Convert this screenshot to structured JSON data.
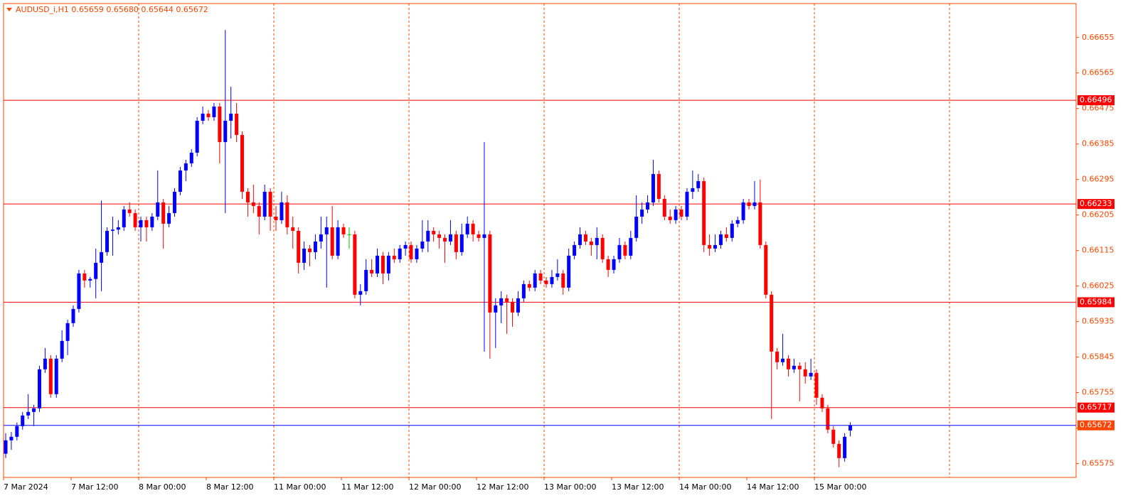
{
  "chart_data": {
    "type": "candlestick",
    "title": "AUDUSD_i,H1  0.65659 0.65680 0.65644 0.65672",
    "categories": [
      "7 Mar 2024",
      null,
      null,
      null,
      null,
      null,
      null,
      null,
      null,
      null,
      null,
      null,
      "7 Mar 12:00",
      null,
      null,
      null,
      null,
      null,
      null,
      null,
      null,
      null,
      null,
      null,
      "8 Mar 00:00",
      null,
      null,
      null,
      null,
      null,
      null,
      null,
      null,
      null,
      null,
      null,
      "8 Mar 12:00",
      null,
      null,
      null,
      null,
      null,
      null,
      null,
      null,
      null,
      null,
      null,
      "11 Mar 00:00",
      null,
      null,
      null,
      null,
      null,
      null,
      null,
      null,
      null,
      null,
      null,
      "11 Mar 12:00",
      null,
      null,
      null,
      null,
      null,
      null,
      null,
      null,
      null,
      null,
      null,
      "12 Mar 00:00",
      null,
      null,
      null,
      null,
      null,
      null,
      null,
      null,
      null,
      null,
      null,
      "12 Mar 12:00",
      null,
      null,
      null,
      null,
      null,
      null,
      null,
      null,
      null,
      null,
      null,
      "13 Mar 00:00",
      null,
      null,
      null,
      null,
      null,
      null,
      null,
      null,
      null,
      null,
      null,
      "13 Mar 12:00",
      null,
      null,
      null,
      null,
      null,
      null,
      null,
      null,
      null,
      null,
      null,
      "14 Mar 00:00",
      null,
      null,
      null,
      null,
      null,
      null,
      null,
      null,
      null,
      null,
      null,
      "14 Mar 12:00",
      null,
      null,
      null,
      null,
      null,
      null,
      null,
      null,
      null,
      null,
      null,
      "15 Mar 00:00",
      null,
      null,
      null,
      null,
      null,
      null
    ],
    "ohlc": [
      [
        0.656,
        0.65652,
        0.65589,
        0.65634
      ],
      [
        0.65634,
        0.65655,
        0.6561,
        0.65643
      ],
      [
        0.65643,
        0.65679,
        0.65634,
        0.6567
      ],
      [
        0.6567,
        0.65706,
        0.65661,
        0.65697
      ],
      [
        0.65697,
        0.65751,
        0.65688,
        0.65706
      ],
      [
        0.65706,
        0.65724,
        0.6567,
        0.65715
      ],
      [
        0.65715,
        0.65823,
        0.65706,
        0.65814
      ],
      [
        0.65814,
        0.65868,
        0.65805,
        0.65841
      ],
      [
        0.65841,
        0.6585,
        0.65742,
        0.65751
      ],
      [
        0.65751,
        0.6585,
        0.65742,
        0.65841
      ],
      [
        0.65841,
        0.65913,
        0.65832,
        0.65886
      ],
      [
        0.65886,
        0.6594,
        0.6585,
        0.65931
      ],
      [
        0.65931,
        0.65976,
        0.65922,
        0.65967
      ],
      [
        0.65967,
        0.66066,
        0.65958,
        0.66057
      ],
      [
        0.66057,
        0.66066,
        0.66021,
        0.66039
      ],
      [
        0.66039,
        0.66048,
        0.66021,
        0.66043
      ],
      [
        0.66043,
        0.6612,
        0.65994,
        0.66084
      ],
      [
        0.66084,
        0.66242,
        0.66012,
        0.66111
      ],
      [
        0.66111,
        0.66174,
        0.66102,
        0.66165
      ],
      [
        0.66165,
        0.66201,
        0.66102,
        0.66168
      ],
      [
        0.66168,
        0.66192,
        0.66156,
        0.66174
      ],
      [
        0.66174,
        0.66228,
        0.66165,
        0.66219
      ],
      [
        0.66219,
        0.66237,
        0.66201,
        0.6621
      ],
      [
        0.6621,
        0.66219,
        0.66165,
        0.66174
      ],
      [
        0.66174,
        0.66201,
        0.66138,
        0.66192
      ],
      [
        0.66192,
        0.66201,
        0.66138,
        0.66174
      ],
      [
        0.66174,
        0.6621,
        0.66165,
        0.66201
      ],
      [
        0.66201,
        0.66318,
        0.66192,
        0.66237
      ],
      [
        0.66237,
        0.66246,
        0.6612,
        0.66183
      ],
      [
        0.66183,
        0.66228,
        0.66174,
        0.6621
      ],
      [
        0.6621,
        0.66273,
        0.66201,
        0.66264
      ],
      [
        0.66264,
        0.66327,
        0.66255,
        0.66318
      ],
      [
        0.66318,
        0.66345,
        0.66291,
        0.66336
      ],
      [
        0.66336,
        0.66372,
        0.66327,
        0.66363
      ],
      [
        0.66363,
        0.66453,
        0.66354,
        0.66444
      ],
      [
        0.66444,
        0.6648,
        0.66435,
        0.66462
      ],
      [
        0.66462,
        0.66471,
        0.66444,
        0.66453
      ],
      [
        0.66453,
        0.66489,
        0.66444,
        0.6648
      ],
      [
        0.6648,
        0.66489,
        0.66336,
        0.6639
      ],
      [
        0.6639,
        0.66674,
        0.6621,
        0.66444
      ],
      [
        0.66444,
        0.6653,
        0.66399,
        0.66462
      ],
      [
        0.66462,
        0.66489,
        0.6639,
        0.66408
      ],
      [
        0.66408,
        0.66417,
        0.66246,
        0.66264
      ],
      [
        0.66264,
        0.66273,
        0.66201,
        0.66237
      ],
      [
        0.66237,
        0.66282,
        0.6621,
        0.66228
      ],
      [
        0.66228,
        0.66237,
        0.66156,
        0.66201
      ],
      [
        0.66201,
        0.66282,
        0.66192,
        0.66264
      ],
      [
        0.66264,
        0.66273,
        0.66165,
        0.66201
      ],
      [
        0.66201,
        0.66228,
        0.66165,
        0.66192
      ],
      [
        0.66192,
        0.66264,
        0.66183,
        0.66237
      ],
      [
        0.66237,
        0.66255,
        0.66156,
        0.66174
      ],
      [
        0.66174,
        0.66201,
        0.6612,
        0.66165
      ],
      [
        0.66165,
        0.66174,
        0.66057,
        0.66084
      ],
      [
        0.66084,
        0.66138,
        0.66066,
        0.6612
      ],
      [
        0.6612,
        0.66129,
        0.66075,
        0.66111
      ],
      [
        0.66111,
        0.66156,
        0.66093,
        0.66138
      ],
      [
        0.66138,
        0.66201,
        0.6612,
        0.66156
      ],
      [
        0.66156,
        0.66201,
        0.66021,
        0.66174
      ],
      [
        0.66174,
        0.66228,
        0.66093,
        0.66102
      ],
      [
        0.66102,
        0.66192,
        0.66093,
        0.66174
      ],
      [
        0.66174,
        0.66183,
        0.66147,
        0.66156
      ],
      [
        0.66156,
        0.66174,
        0.6612,
        0.66156
      ],
      [
        0.66156,
        0.66165,
        0.65994,
        0.66003
      ],
      [
        0.66003,
        0.6603,
        0.65976,
        0.66012
      ],
      [
        0.66012,
        0.66093,
        0.66003,
        0.66066
      ],
      [
        0.66066,
        0.66093,
        0.66048,
        0.66057
      ],
      [
        0.66057,
        0.6612,
        0.66048,
        0.66102
      ],
      [
        0.66102,
        0.66111,
        0.6603,
        0.66057
      ],
      [
        0.66057,
        0.66111,
        0.66039,
        0.66102
      ],
      [
        0.66102,
        0.6612,
        0.66084,
        0.66093
      ],
      [
        0.66093,
        0.66129,
        0.66084,
        0.6612
      ],
      [
        0.6612,
        0.66138,
        0.66102,
        0.66129
      ],
      [
        0.66129,
        0.66138,
        0.66084,
        0.66093
      ],
      [
        0.66093,
        0.66129,
        0.66084,
        0.6612
      ],
      [
        0.6612,
        0.66192,
        0.66111,
        0.66138
      ],
      [
        0.66138,
        0.66192,
        0.66111,
        0.66165
      ],
      [
        0.66165,
        0.66174,
        0.66138,
        0.66156
      ],
      [
        0.66156,
        0.66165,
        0.6612,
        0.66147
      ],
      [
        0.66147,
        0.66156,
        0.66084,
        0.66138
      ],
      [
        0.66138,
        0.66192,
        0.66129,
        0.66156
      ],
      [
        0.66156,
        0.66165,
        0.66093,
        0.66111
      ],
      [
        0.66111,
        0.66183,
        0.66102,
        0.66156
      ],
      [
        0.66156,
        0.66201,
        0.66147,
        0.66183
      ],
      [
        0.66183,
        0.66192,
        0.66138,
        0.66156
      ],
      [
        0.66156,
        0.66165,
        0.66138,
        0.66147
      ],
      [
        0.66147,
        0.6639,
        0.65859,
        0.66156
      ],
      [
        0.66156,
        0.66165,
        0.65841,
        0.65958
      ],
      [
        0.65958,
        0.65994,
        0.65868,
        0.65976
      ],
      [
        0.65976,
        0.66012,
        0.65931,
        0.65994
      ],
      [
        0.65994,
        0.66003,
        0.65904,
        0.65985
      ],
      [
        0.65985,
        0.65994,
        0.65922,
        0.65958
      ],
      [
        0.65958,
        0.66012,
        0.65949,
        0.65994
      ],
      [
        0.65994,
        0.66039,
        0.65985,
        0.6603
      ],
      [
        0.6603,
        0.66039,
        0.66012,
        0.66021
      ],
      [
        0.66021,
        0.66066,
        0.66012,
        0.66057
      ],
      [
        0.66057,
        0.66066,
        0.6603,
        0.66039
      ],
      [
        0.66039,
        0.66048,
        0.66021,
        0.6603
      ],
      [
        0.6603,
        0.66066,
        0.66021,
        0.66048
      ],
      [
        0.66048,
        0.66093,
        0.66039,
        0.66057
      ],
      [
        0.66057,
        0.66066,
        0.66003,
        0.66021
      ],
      [
        0.66021,
        0.6612,
        0.66012,
        0.66102
      ],
      [
        0.66102,
        0.66138,
        0.66093,
        0.66129
      ],
      [
        0.66129,
        0.66174,
        0.6612,
        0.66156
      ],
      [
        0.66156,
        0.66165,
        0.66129,
        0.66138
      ],
      [
        0.66138,
        0.66147,
        0.66102,
        0.66129
      ],
      [
        0.66129,
        0.66174,
        0.66093,
        0.66147
      ],
      [
        0.66147,
        0.66156,
        0.66084,
        0.66093
      ],
      [
        0.66093,
        0.66102,
        0.66048,
        0.66066
      ],
      [
        0.66066,
        0.66102,
        0.66057,
        0.66093
      ],
      [
        0.66093,
        0.66147,
        0.66084,
        0.66129
      ],
      [
        0.66129,
        0.66138,
        0.66093,
        0.66102
      ],
      [
        0.66102,
        0.66165,
        0.66093,
        0.66147
      ],
      [
        0.66147,
        0.66255,
        0.66138,
        0.66201
      ],
      [
        0.66201,
        0.66237,
        0.66183,
        0.66219
      ],
      [
        0.66219,
        0.66255,
        0.6621,
        0.66237
      ],
      [
        0.66237,
        0.66345,
        0.66228,
        0.66309
      ],
      [
        0.66309,
        0.66318,
        0.66237,
        0.66246
      ],
      [
        0.66246,
        0.66255,
        0.66192,
        0.66201
      ],
      [
        0.66201,
        0.66219,
        0.66183,
        0.66192
      ],
      [
        0.66192,
        0.66228,
        0.66183,
        0.66219
      ],
      [
        0.66219,
        0.66228,
        0.66192,
        0.66201
      ],
      [
        0.66201,
        0.66273,
        0.66192,
        0.66264
      ],
      [
        0.66264,
        0.66318,
        0.66246,
        0.66273
      ],
      [
        0.66273,
        0.66309,
        0.66264,
        0.66291
      ],
      [
        0.66291,
        0.663,
        0.66111,
        0.66129
      ],
      [
        0.66129,
        0.66156,
        0.66102,
        0.6612
      ],
      [
        0.6612,
        0.66156,
        0.66111,
        0.66129
      ],
      [
        0.66129,
        0.66165,
        0.6612,
        0.66156
      ],
      [
        0.66156,
        0.66174,
        0.66138,
        0.66147
      ],
      [
        0.66147,
        0.66192,
        0.66138,
        0.66183
      ],
      [
        0.66183,
        0.66201,
        0.66174,
        0.66192
      ],
      [
        0.66192,
        0.66246,
        0.66183,
        0.66237
      ],
      [
        0.66237,
        0.66246,
        0.66219,
        0.66228
      ],
      [
        0.66228,
        0.66291,
        0.66219,
        0.66237
      ],
      [
        0.66237,
        0.66295,
        0.6612,
        0.66129
      ],
      [
        0.66129,
        0.66138,
        0.65994,
        0.66003
      ],
      [
        0.66003,
        0.66012,
        0.65688,
        0.65859
      ],
      [
        0.65859,
        0.65868,
        0.65814,
        0.65832
      ],
      [
        0.65832,
        0.65904,
        0.65823,
        0.65841
      ],
      [
        0.65841,
        0.6585,
        0.65796,
        0.65814
      ],
      [
        0.65814,
        0.65841,
        0.65805,
        0.65823
      ],
      [
        0.65823,
        0.65832,
        0.65733,
        0.65814
      ],
      [
        0.65814,
        0.65832,
        0.65778,
        0.65796
      ],
      [
        0.65796,
        0.65841,
        0.65787,
        0.65805
      ],
      [
        0.65805,
        0.65814,
        0.65724,
        0.65742
      ],
      [
        0.65742,
        0.65751,
        0.65706,
        0.65715
      ],
      [
        0.65715,
        0.65724,
        0.65652,
        0.65661
      ],
      [
        0.65661,
        0.6567,
        0.65616,
        0.65625
      ],
      [
        0.65625,
        0.65634,
        0.65566,
        0.65589
      ],
      [
        0.65589,
        0.65652,
        0.6558,
        0.65643
      ],
      [
        0.65659,
        0.6568,
        0.65644,
        0.65672
      ]
    ],
    "up_color": "#0000ff",
    "down_color": "#ff0000",
    "doji_color": "#00c000",
    "ylim": [
      0.6554,
      0.66741
    ],
    "yticks": [
      0.66655,
      0.66565,
      0.66475,
      0.66385,
      0.66295,
      0.66205,
      0.66115,
      0.66025,
      0.65935,
      0.65845,
      0.65755,
      0.65665,
      0.65575
    ],
    "levels": [
      {
        "value": 0.66496,
        "color": "#ff0000"
      },
      {
        "value": 0.66233,
        "color": "#ff0000"
      },
      {
        "value": 0.65984,
        "color": "#ff0000"
      },
      {
        "value": 0.65717,
        "color": "#ff0000"
      }
    ],
    "last_price": {
      "value": 0.65672,
      "color": "#0000ff",
      "label_color": "#ff4500"
    },
    "axis_color": "#ff4500",
    "grid": true
  }
}
